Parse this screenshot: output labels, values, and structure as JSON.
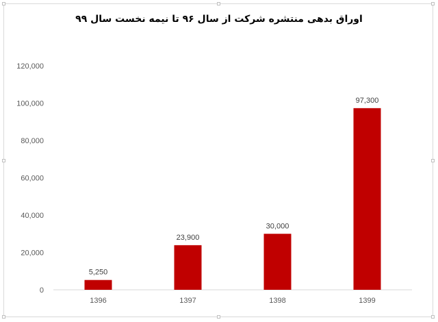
{
  "chart_data": {
    "type": "bar",
    "title": "اوراق بدهی منتشره شرکت از سال ۹۶ تا نیمه نخست سال ۹۹",
    "categories": [
      "1396",
      "1397",
      "1398",
      "1399"
    ],
    "values": [
      5250,
      23900,
      30000,
      97300
    ],
    "data_labels": [
      "5,250",
      "23,900",
      "30,000",
      "97,300"
    ],
    "y_ticks": [
      0,
      20000,
      40000,
      60000,
      80000,
      100000,
      120000
    ],
    "y_tick_labels": [
      "0",
      "20,000",
      "40,000",
      "60,000",
      "80,000",
      "100,000",
      "120,000"
    ],
    "ylim": [
      0,
      120000
    ],
    "xlabel": "",
    "ylabel": "",
    "grid": false,
    "legend": "none",
    "bar_color": "#c00000"
  }
}
